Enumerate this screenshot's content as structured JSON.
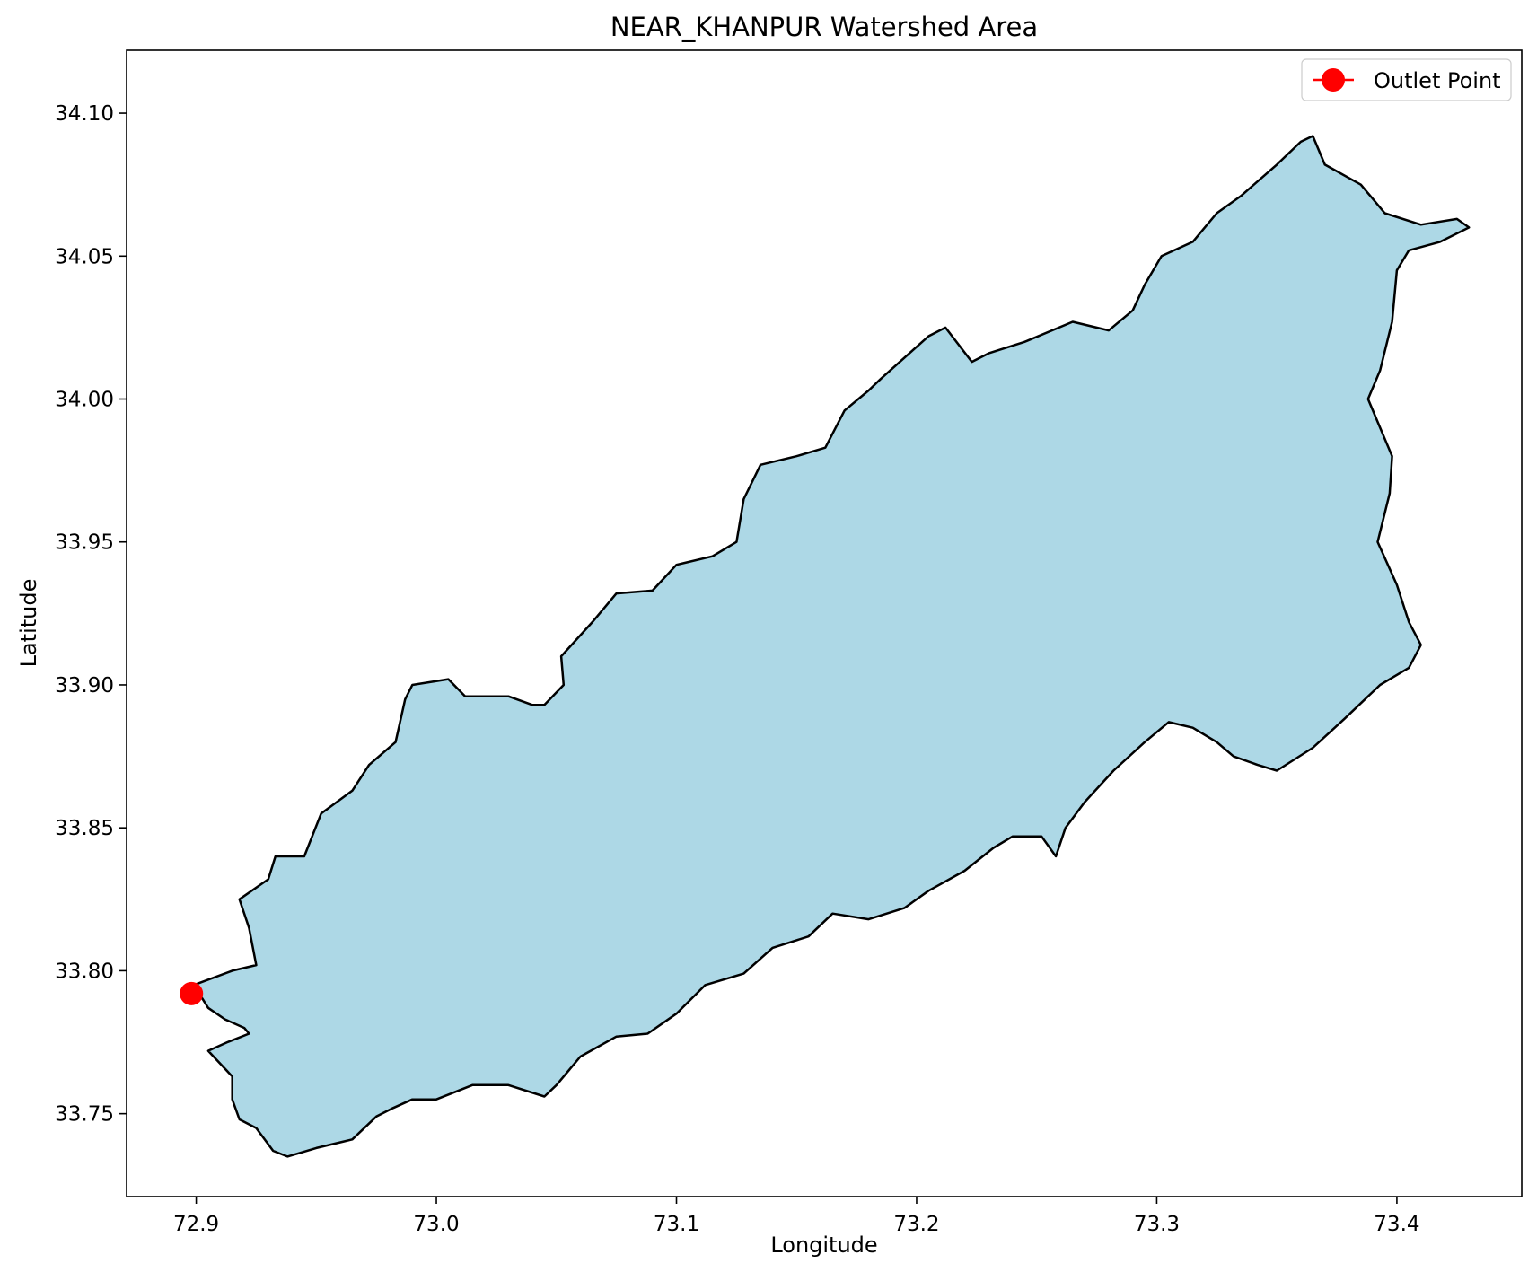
{
  "chart_data": {
    "type": "map",
    "title": "NEAR_KHANPUR Watershed Area",
    "xlabel": "Longitude",
    "ylabel": "Latitude",
    "xlim": [
      72.871,
      73.452
    ],
    "ylim": [
      33.721,
      34.122
    ],
    "xticks": [
      72.9,
      73.0,
      73.1,
      73.2,
      73.3,
      73.4
    ],
    "xtick_labels": [
      "72.9",
      "73.0",
      "73.1",
      "73.2",
      "73.3",
      "73.4"
    ],
    "yticks": [
      33.75,
      33.8,
      33.85,
      33.9,
      33.95,
      34.0,
      34.05,
      34.1
    ],
    "ytick_labels": [
      "33.75",
      "33.80",
      "33.85",
      "33.90",
      "33.95",
      "34.00",
      "34.05",
      "34.10"
    ],
    "grid": false,
    "legend_position": "top-right",
    "watershed": {
      "fill": "#add8e6",
      "edge": "#000000",
      "boundary": [
        [
          72.899,
          33.795
        ],
        [
          72.915,
          33.8
        ],
        [
          72.925,
          33.802
        ],
        [
          72.922,
          33.815
        ],
        [
          72.918,
          33.825
        ],
        [
          72.93,
          33.832
        ],
        [
          72.933,
          33.84
        ],
        [
          72.945,
          33.84
        ],
        [
          72.952,
          33.855
        ],
        [
          72.965,
          33.863
        ],
        [
          72.972,
          33.872
        ],
        [
          72.983,
          33.88
        ],
        [
          72.987,
          33.895
        ],
        [
          72.99,
          33.9
        ],
        [
          73.005,
          33.902
        ],
        [
          73.012,
          33.896
        ],
        [
          73.03,
          33.896
        ],
        [
          73.04,
          33.893
        ],
        [
          73.045,
          33.893
        ],
        [
          73.053,
          33.9
        ],
        [
          73.052,
          33.91
        ],
        [
          73.065,
          33.922
        ],
        [
          73.075,
          33.932
        ],
        [
          73.09,
          33.933
        ],
        [
          73.1,
          33.942
        ],
        [
          73.115,
          33.945
        ],
        [
          73.125,
          33.95
        ],
        [
          73.128,
          33.965
        ],
        [
          73.135,
          33.977
        ],
        [
          73.15,
          33.98
        ],
        [
          73.162,
          33.983
        ],
        [
          73.17,
          33.996
        ],
        [
          73.18,
          34.003
        ],
        [
          73.185,
          34.007
        ],
        [
          73.205,
          34.022
        ],
        [
          73.212,
          34.025
        ],
        [
          73.223,
          34.013
        ],
        [
          73.23,
          34.016
        ],
        [
          73.245,
          34.02
        ],
        [
          73.265,
          34.027
        ],
        [
          73.28,
          34.024
        ],
        [
          73.29,
          34.031
        ],
        [
          73.295,
          34.04
        ],
        [
          73.302,
          34.05
        ],
        [
          73.315,
          34.055
        ],
        [
          73.325,
          34.065
        ],
        [
          73.335,
          34.071
        ],
        [
          73.35,
          34.082
        ],
        [
          73.36,
          34.09
        ],
        [
          73.365,
          34.092
        ],
        [
          73.37,
          34.082
        ],
        [
          73.385,
          34.075
        ],
        [
          73.395,
          34.065
        ],
        [
          73.41,
          34.061
        ],
        [
          73.425,
          34.063
        ],
        [
          73.43,
          34.06
        ],
        [
          73.418,
          34.055
        ],
        [
          73.405,
          34.052
        ],
        [
          73.4,
          34.045
        ],
        [
          73.398,
          34.027
        ],
        [
          73.393,
          34.01
        ],
        [
          73.388,
          34.0
        ],
        [
          73.393,
          33.99
        ],
        [
          73.398,
          33.98
        ],
        [
          73.397,
          33.967
        ],
        [
          73.392,
          33.95
        ],
        [
          73.4,
          33.935
        ],
        [
          73.405,
          33.922
        ],
        [
          73.41,
          33.914
        ],
        [
          73.405,
          33.906
        ],
        [
          73.393,
          33.9
        ],
        [
          73.378,
          33.888
        ],
        [
          73.365,
          33.878
        ],
        [
          73.35,
          33.87
        ],
        [
          73.342,
          33.872
        ],
        [
          73.332,
          33.875
        ],
        [
          73.325,
          33.88
        ],
        [
          73.315,
          33.885
        ],
        [
          73.305,
          33.887
        ],
        [
          73.295,
          33.88
        ],
        [
          73.282,
          33.87
        ],
        [
          73.27,
          33.859
        ],
        [
          73.262,
          33.85
        ],
        [
          73.258,
          33.84
        ],
        [
          73.252,
          33.847
        ],
        [
          73.24,
          33.847
        ],
        [
          73.232,
          33.843
        ],
        [
          73.22,
          33.835
        ],
        [
          73.205,
          33.828
        ],
        [
          73.195,
          33.822
        ],
        [
          73.18,
          33.818
        ],
        [
          73.165,
          33.82
        ],
        [
          73.155,
          33.812
        ],
        [
          73.14,
          33.808
        ],
        [
          73.128,
          33.799
        ],
        [
          73.112,
          33.795
        ],
        [
          73.1,
          33.785
        ],
        [
          73.088,
          33.778
        ],
        [
          73.075,
          33.777
        ],
        [
          73.06,
          33.77
        ],
        [
          73.05,
          33.76
        ],
        [
          73.045,
          33.756
        ],
        [
          73.03,
          33.76
        ],
        [
          73.015,
          33.76
        ],
        [
          73.0,
          33.755
        ],
        [
          72.99,
          33.755
        ],
        [
          72.982,
          33.752
        ],
        [
          72.975,
          33.749
        ],
        [
          72.965,
          33.741
        ],
        [
          72.95,
          33.738
        ],
        [
          72.938,
          33.735
        ],
        [
          72.932,
          33.737
        ],
        [
          72.925,
          33.745
        ],
        [
          72.918,
          33.748
        ],
        [
          72.915,
          33.755
        ],
        [
          72.915,
          33.763
        ],
        [
          72.905,
          33.772
        ],
        [
          72.913,
          33.775
        ],
        [
          72.922,
          33.778
        ],
        [
          72.92,
          33.78
        ],
        [
          72.912,
          33.783
        ],
        [
          72.905,
          33.787
        ],
        [
          72.899,
          33.795
        ]
      ]
    },
    "outlet": {
      "name": "Outlet Point",
      "lon": 72.898,
      "lat": 33.792,
      "color": "#ff0000"
    }
  }
}
